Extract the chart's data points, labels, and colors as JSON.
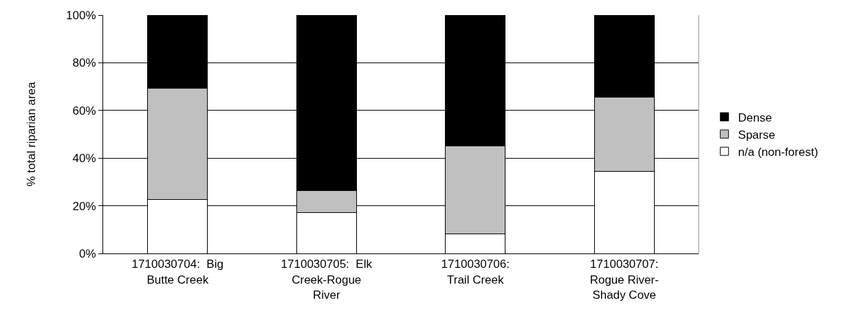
{
  "chart_data": {
    "type": "bar",
    "stacked": true,
    "categories": [
      "1710030704:  Big Butte Creek",
      "1710030705:  Elk Creek-Rogue River",
      "1710030706:  Trail Creek",
      "1710030707:  Rogue River-Shady Cove"
    ],
    "series": [
      {
        "name": "n/a (non-forest)",
        "color": "#ffffff",
        "values": [
          22.7,
          17.2,
          8.2,
          34.4
        ]
      },
      {
        "name": "Sparse",
        "color": "#c0c0c0",
        "values": [
          46.5,
          9.3,
          36.9,
          31.1
        ]
      },
      {
        "name": "Dense",
        "color": "#000000",
        "values": [
          30.8,
          73.5,
          54.9,
          34.5
        ]
      }
    ],
    "ylabel": "% total riparian area",
    "ylim": [
      0,
      100
    ],
    "yticks": [
      {
        "value": 0,
        "label": "0%"
      },
      {
        "value": 20,
        "label": "20%"
      },
      {
        "value": 40,
        "label": "40%"
      },
      {
        "value": 60,
        "label": "60%"
      },
      {
        "value": 80,
        "label": "80%"
      },
      {
        "value": 100,
        "label": "100%"
      }
    ],
    "grid": "y",
    "legend": "right"
  }
}
